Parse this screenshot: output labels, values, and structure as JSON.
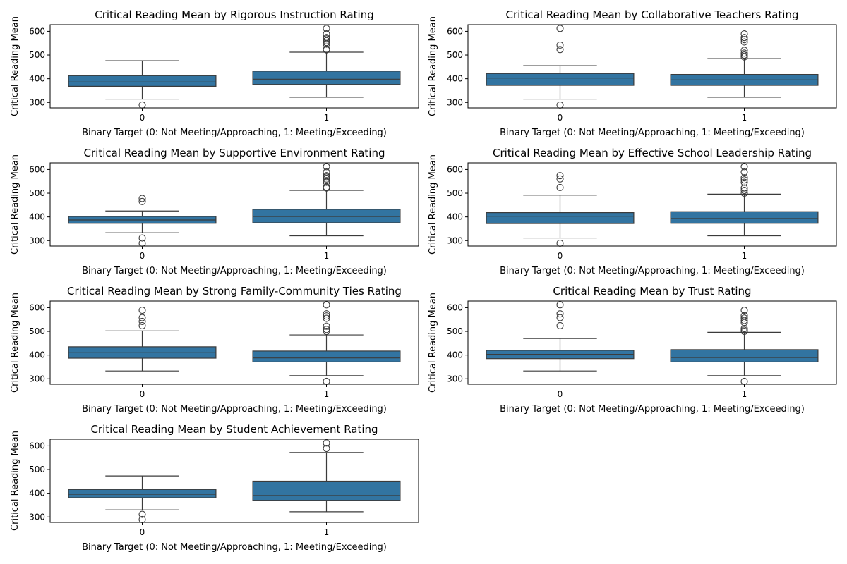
{
  "colors": {
    "box_fill": "#3274a1",
    "line": "#3b3b3b",
    "axes": "#000000",
    "background": "#ffffff"
  },
  "chart_data": [
    {
      "type": "box",
      "title": "Critical Reading Mean by Rigorous Instruction Rating",
      "xlabel": "Binary Target (0: Not Meeting/Approaching, 1: Meeting/Exceeding)",
      "ylabel": "Critical Reading Mean",
      "categories": [
        "0",
        "1"
      ],
      "ylim": [
        277,
        628
      ],
      "yticks": [
        "300",
        "400",
        "500",
        "600"
      ],
      "boxes": [
        {
          "category": "0",
          "whisker_low": 314,
          "q1": 368,
          "median": 386,
          "q3": 413,
          "whisker_high": 476,
          "outliers": [
            289
          ]
        },
        {
          "category": "1",
          "whisker_low": 322,
          "q1": 376,
          "median": 398,
          "q3": 432,
          "whisker_high": 512,
          "outliers": [
            522,
            524,
            546,
            553,
            560,
            568,
            574,
            589,
            612
          ]
        }
      ]
    },
    {
      "type": "box",
      "title": "Critical Reading Mean by Collaborative Teachers Rating",
      "xlabel": "Binary Target (0: Not Meeting/Approaching, 1: Meeting/Exceeding)",
      "ylabel": "Critical Reading Mean",
      "categories": [
        "0",
        "1"
      ],
      "ylim": [
        277,
        628
      ],
      "yticks": [
        "300",
        "400",
        "500",
        "600"
      ],
      "boxes": [
        {
          "category": "0",
          "whisker_low": 314,
          "q1": 372,
          "median": 403,
          "q3": 422,
          "whisker_high": 455,
          "outliers": [
            289,
            523,
            542,
            612
          ]
        },
        {
          "category": "1",
          "whisker_low": 322,
          "q1": 372,
          "median": 395,
          "q3": 418,
          "whisker_high": 485,
          "outliers": [
            492,
            500,
            508,
            520,
            555,
            565,
            574,
            589
          ]
        }
      ]
    },
    {
      "type": "box",
      "title": "Critical Reading Mean by Supportive Environment Rating",
      "xlabel": "Binary Target (0: Not Meeting/Approaching, 1: Meeting/Exceeding)",
      "ylabel": "Critical Reading Mean",
      "categories": [
        "0",
        "1"
      ],
      "ylim": [
        277,
        628
      ],
      "yticks": [
        "300",
        "400",
        "500",
        "600"
      ],
      "boxes": [
        {
          "category": "0",
          "whisker_low": 333,
          "q1": 373,
          "median": 387,
          "q3": 402,
          "whisker_high": 425,
          "outliers": [
            289,
            311,
            465,
            478
          ]
        },
        {
          "category": "1",
          "whisker_low": 320,
          "q1": 375,
          "median": 402,
          "q3": 432,
          "whisker_high": 512,
          "outliers": [
            522,
            525,
            546,
            553,
            560,
            568,
            574,
            589,
            612
          ]
        }
      ]
    },
    {
      "type": "box",
      "title": "Critical Reading Mean by Effective School Leadership Rating",
      "xlabel": "Binary Target (0: Not Meeting/Approaching, 1: Meeting/Exceeding)",
      "ylabel": "Critical Reading Mean",
      "categories": [
        "0",
        "1"
      ],
      "ylim": [
        277,
        628
      ],
      "yticks": [
        "300",
        "400",
        "500",
        "600"
      ],
      "boxes": [
        {
          "category": "0",
          "whisker_low": 311,
          "q1": 372,
          "median": 403,
          "q3": 418,
          "whisker_high": 492,
          "outliers": [
            289,
            524,
            560,
            574
          ]
        },
        {
          "category": "1",
          "whisker_low": 320,
          "q1": 373,
          "median": 393,
          "q3": 422,
          "whisker_high": 496,
          "outliers": [
            500,
            512,
            522,
            546,
            556,
            565,
            589,
            612
          ]
        }
      ]
    },
    {
      "type": "box",
      "title": "Critical Reading Mean by Strong Family-Community Ties Rating",
      "xlabel": "Binary Target (0: Not Meeting/Approaching, 1: Meeting/Exceeding)",
      "ylabel": "Critical Reading Mean",
      "categories": [
        "0",
        "1"
      ],
      "ylim": [
        277,
        628
      ],
      "yticks": [
        "300",
        "400",
        "500",
        "600"
      ],
      "boxes": [
        {
          "category": "0",
          "whisker_low": 333,
          "q1": 387,
          "median": 410,
          "q3": 435,
          "whisker_high": 502,
          "outliers": [
            524,
            542,
            558,
            589
          ]
        },
        {
          "category": "1",
          "whisker_low": 313,
          "q1": 371,
          "median": 388,
          "q3": 417,
          "whisker_high": 485,
          "outliers": [
            289,
            500,
            508,
            522,
            555,
            565,
            574,
            612
          ]
        }
      ]
    },
    {
      "type": "box",
      "title": "Critical Reading Mean by Trust Rating",
      "xlabel": "Binary Target (0: Not Meeting/Approaching, 1: Meeting/Exceeding)",
      "ylabel": "Critical Reading Mean",
      "categories": [
        "0",
        "1"
      ],
      "ylim": [
        277,
        628
      ],
      "yticks": [
        "300",
        "400",
        "500",
        "600"
      ],
      "boxes": [
        {
          "category": "0",
          "whisker_low": 333,
          "q1": 385,
          "median": 403,
          "q3": 420,
          "whisker_high": 470,
          "outliers": [
            524,
            558,
            574,
            612
          ]
        },
        {
          "category": "1",
          "whisker_low": 313,
          "q1": 371,
          "median": 390,
          "q3": 423,
          "whisker_high": 496,
          "outliers": [
            289,
            500,
            505,
            512,
            537,
            546,
            556,
            566,
            589
          ]
        }
      ]
    },
    {
      "type": "box",
      "title": "Critical Reading Mean by Student Achievement Rating",
      "xlabel": "Binary Target (0: Not Meeting/Approaching, 1: Meeting/Exceeding)",
      "ylabel": "Critical Reading Mean",
      "categories": [
        "0",
        "1"
      ],
      "ylim": [
        277,
        628
      ],
      "yticks": [
        "300",
        "400",
        "500",
        "600"
      ],
      "boxes": [
        {
          "category": "0",
          "whisker_low": 330,
          "q1": 381,
          "median": 396,
          "q3": 416,
          "whisker_high": 473,
          "outliers": [
            289,
            311
          ]
        },
        {
          "category": "1",
          "whisker_low": 322,
          "q1": 370,
          "median": 390,
          "q3": 451,
          "whisker_high": 572,
          "outliers": [
            589,
            612
          ]
        }
      ]
    }
  ]
}
